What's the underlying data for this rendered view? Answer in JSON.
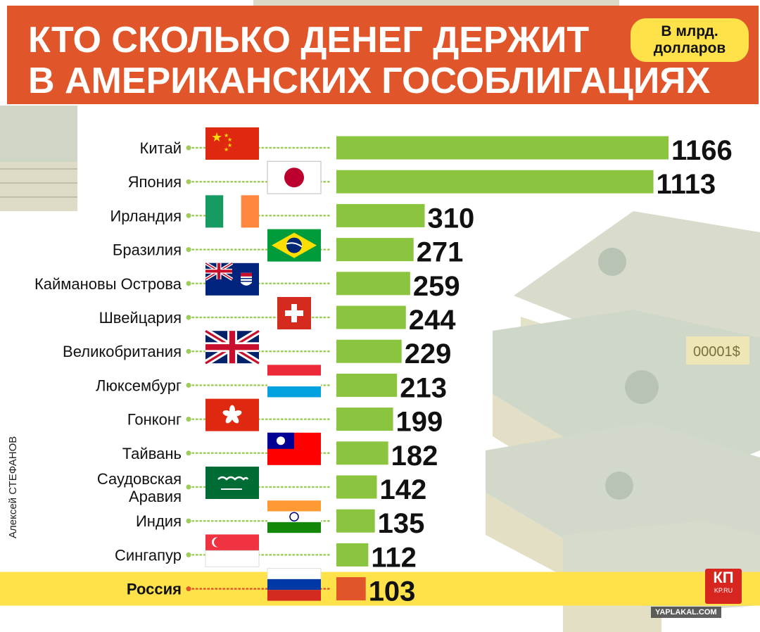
{
  "header": {
    "title_line1": "КТО СКОЛЬКО ДЕНЕГ ДЕРЖИТ",
    "title_line2": "В АМЕРИКАНСКИХ ГОСОБЛИГАЦИЯХ",
    "unit_line1": "В млрд.",
    "unit_line2": "долларов"
  },
  "author": "Алексей СТЕФАНОВ",
  "logo": {
    "text": "КП",
    "sub": "KP.RU"
  },
  "watermark": "YAPLAKAL.COM",
  "colors": {
    "header": "#e0562a",
    "bar": "#8bc43f",
    "highlight_bar": "#e0562a",
    "highlight_row": "#ffe24a",
    "dots": "#9fcb5a"
  },
  "chart_data": {
    "type": "bar",
    "orientation": "horizontal",
    "title": "КТО СКОЛЬКО ДЕНЕГ ДЕРЖИТ В АМЕРИКАНСКИХ ГОСОБЛИГАЦИЯХ",
    "unit": "В млрд. долларов",
    "categories": [
      "Китай",
      "Япония",
      "Ирландия",
      "Бразилия",
      "Каймановы Острова",
      "Швейцария",
      "Великобритания",
      "Люксембург",
      "Гонконг",
      "Тайвань",
      "Саудовская Аравия",
      "Индия",
      "Сингапур",
      "Россия"
    ],
    "values": [
      1166,
      1113,
      310,
      271,
      259,
      244,
      229,
      213,
      199,
      182,
      142,
      135,
      112,
      103
    ],
    "flags": [
      "china-flag-icon",
      "japan-flag-icon",
      "ireland-flag-icon",
      "brazil-flag-icon",
      "cayman-flag-icon",
      "switzerland-flag-icon",
      "uk-flag-icon",
      "luxembourg-flag-icon",
      "hongkong-flag-icon",
      "taiwan-flag-icon",
      "saudi-flag-icon",
      "india-flag-icon",
      "singapore-flag-icon",
      "russia-flag-icon"
    ],
    "highlight": "Россия",
    "xlim": [
      0,
      1166
    ]
  }
}
